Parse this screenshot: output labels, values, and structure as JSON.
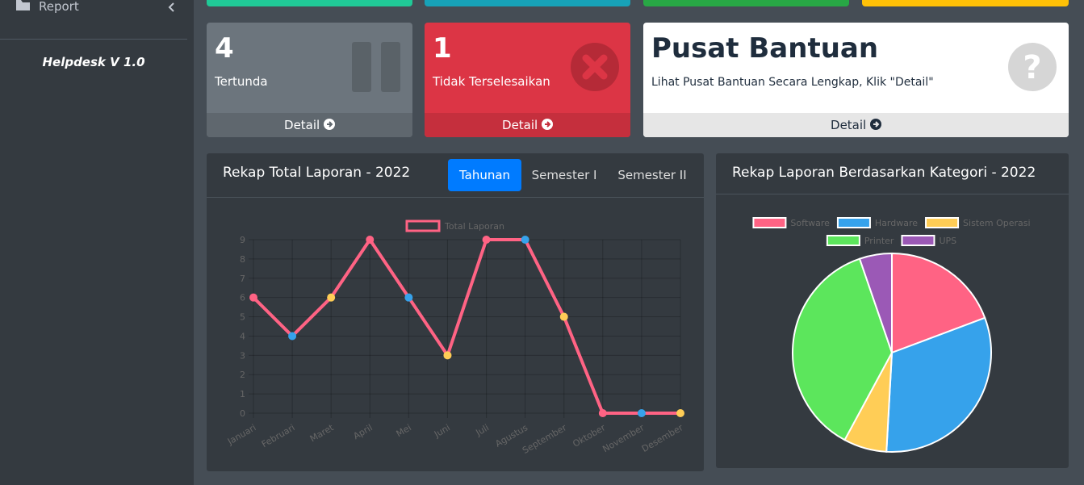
{
  "sidebar": {
    "menu_item": "Report",
    "version": "Helpdesk V 1.0"
  },
  "cards": [
    {
      "count": 4,
      "label": "Tertunda",
      "link": "Detail"
    },
    {
      "count": 1,
      "label": "Tidak Terselesaikan",
      "link": "Detail"
    },
    {
      "title": "Pusat Bantuan",
      "text": "Lihat Pusat Bantuan Secara Lengkap, Klik \"Detail\"",
      "link": "Detail"
    }
  ],
  "tabs": [
    "Tahunan",
    "Semester I",
    "Semester II"
  ],
  "chart_data": [
    {
      "type": "line",
      "title": "Rekap Total Laporan - 2022",
      "categories": [
        "Januari",
        "Februari",
        "Maret",
        "April",
        "Mei",
        "Juni",
        "Juli",
        "Agustus",
        "September",
        "Oktober",
        "November",
        "Desember"
      ],
      "series": [
        {
          "name": "Total Laporan",
          "color": "#ff6384",
          "values": [
            6,
            4,
            6,
            9,
            6,
            3,
            9,
            9,
            5,
            0,
            0,
            0
          ]
        }
      ],
      "point_colors": [
        "#ff6384",
        "#36a2eb",
        "#ffcd56"
      ],
      "ylim": [
        0,
        9
      ],
      "yticks": [
        0,
        1,
        2,
        3,
        4,
        5,
        6,
        7,
        8,
        9
      ],
      "grid": true
    },
    {
      "type": "pie",
      "title": "Rekap Laporan Berdasarkan Kategori - 2022",
      "categories": [
        "Software",
        "Hardware",
        "Sistem Operasi",
        "Printer",
        "UPS"
      ],
      "values": [
        11,
        18,
        4,
        21,
        3
      ],
      "colors": [
        "#ff6384",
        "#36a2eb",
        "#ffcd56",
        "#5ce65c",
        "#9b59b6"
      ]
    }
  ]
}
